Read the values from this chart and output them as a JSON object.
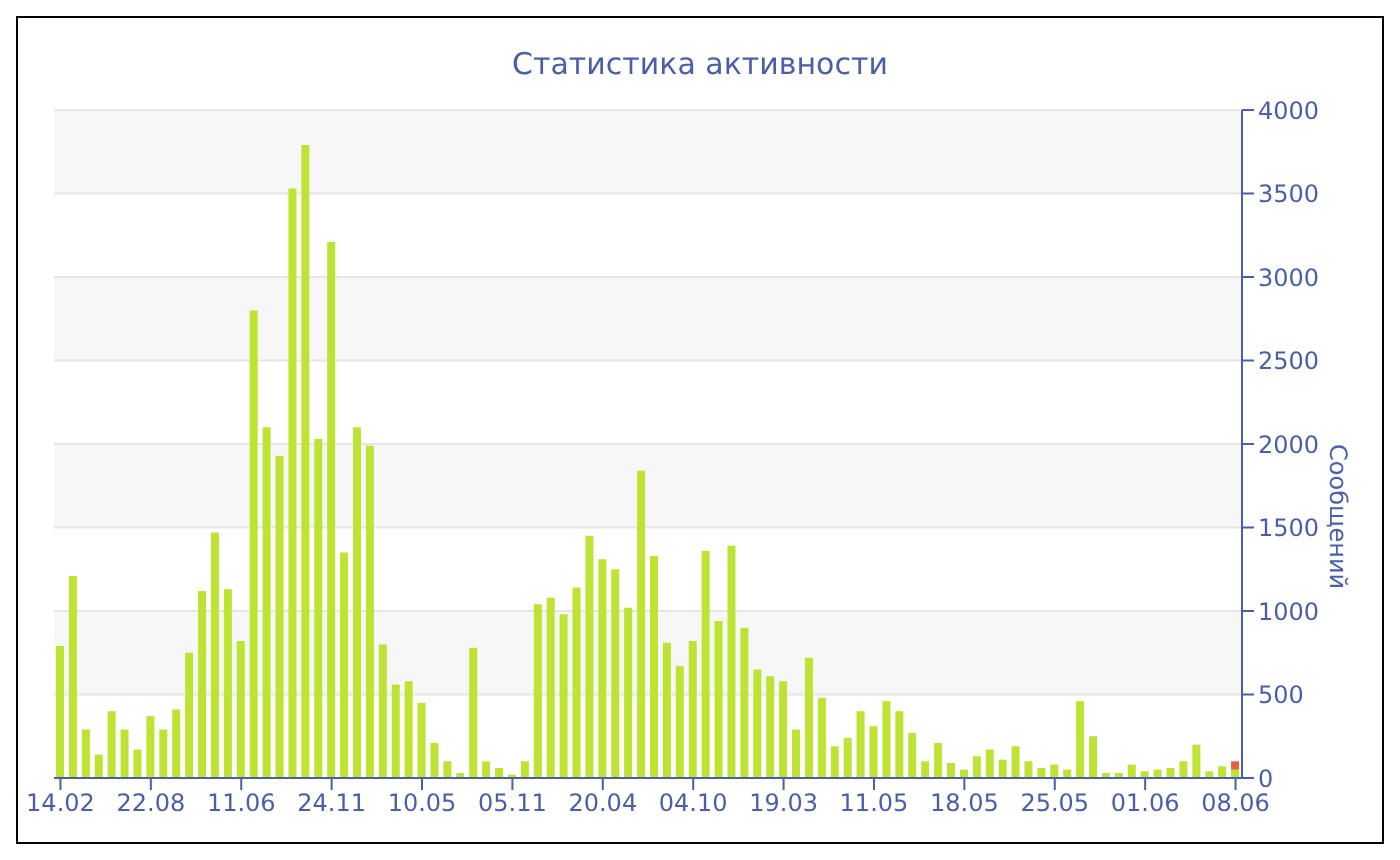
{
  "chart_data": {
    "type": "bar",
    "title": "Статистика активности",
    "ylabel": "Сообщений",
    "stacked": true,
    "grid": "y",
    "categories": [
      "14.02",
      null,
      null,
      null,
      null,
      null,
      null,
      "22.08",
      null,
      null,
      null,
      null,
      null,
      null,
      "11.06",
      null,
      null,
      null,
      null,
      null,
      null,
      "24.11",
      null,
      null,
      null,
      null,
      null,
      null,
      "10.05",
      null,
      null,
      null,
      null,
      null,
      null,
      "05.11",
      null,
      null,
      null,
      null,
      null,
      null,
      "20.04",
      null,
      null,
      null,
      null,
      null,
      null,
      "04.10",
      null,
      null,
      null,
      null,
      null,
      null,
      "19.03",
      null,
      null,
      null,
      null,
      null,
      null,
      "11.05",
      null,
      null,
      null,
      null,
      null,
      null,
      "18.05",
      null,
      null,
      null,
      null,
      null,
      null,
      "25.05",
      null,
      null,
      null,
      null,
      null,
      null,
      "01.06",
      null,
      null,
      null,
      null,
      null,
      null,
      "08.06"
    ],
    "series": [
      {
        "color": "#bde333",
        "values": [
          790,
          1210,
          290,
          140,
          400,
          290,
          170,
          370,
          290,
          410,
          750,
          1120,
          1470,
          1130,
          820,
          2800,
          2100,
          1930,
          3530,
          3790,
          2030,
          3210,
          1350,
          2100,
          1990,
          800,
          560,
          580,
          450,
          210,
          100,
          30,
          780,
          100,
          60,
          20,
          100,
          1040,
          1080,
          980,
          1140,
          1450,
          1310,
          1250,
          1020,
          1840,
          1330,
          810,
          670,
          820,
          1360,
          940,
          1390,
          900,
          650,
          610,
          580,
          290,
          720,
          480,
          190,
          240,
          400,
          310,
          460,
          400,
          270,
          100,
          210,
          90,
          50,
          130,
          170,
          110,
          190,
          100,
          60,
          80,
          50,
          460,
          250,
          30,
          30,
          80,
          40,
          50,
          60,
          100,
          200,
          40,
          70,
          50
        ]
      },
      {
        "color": "#e5633a",
        "values": [
          null,
          null,
          null,
          null,
          null,
          null,
          null,
          null,
          null,
          null,
          null,
          null,
          null,
          null,
          null,
          null,
          null,
          null,
          null,
          null,
          null,
          null,
          null,
          null,
          null,
          null,
          null,
          null,
          null,
          null,
          null,
          null,
          null,
          null,
          null,
          null,
          null,
          null,
          null,
          null,
          null,
          null,
          null,
          null,
          null,
          null,
          null,
          null,
          null,
          null,
          null,
          null,
          null,
          null,
          null,
          null,
          null,
          null,
          null,
          null,
          null,
          null,
          null,
          null,
          null,
          null,
          null,
          null,
          null,
          null,
          null,
          null,
          null,
          null,
          null,
          null,
          null,
          null,
          null,
          null,
          null,
          null,
          null,
          null,
          null,
          null,
          null,
          null,
          null,
          null,
          null,
          50
        ]
      }
    ],
    "ylim": [
      0,
      4000
    ],
    "yticks": [
      0,
      500,
      1000,
      1500,
      2000,
      2500,
      3000,
      3500,
      4000
    ]
  }
}
